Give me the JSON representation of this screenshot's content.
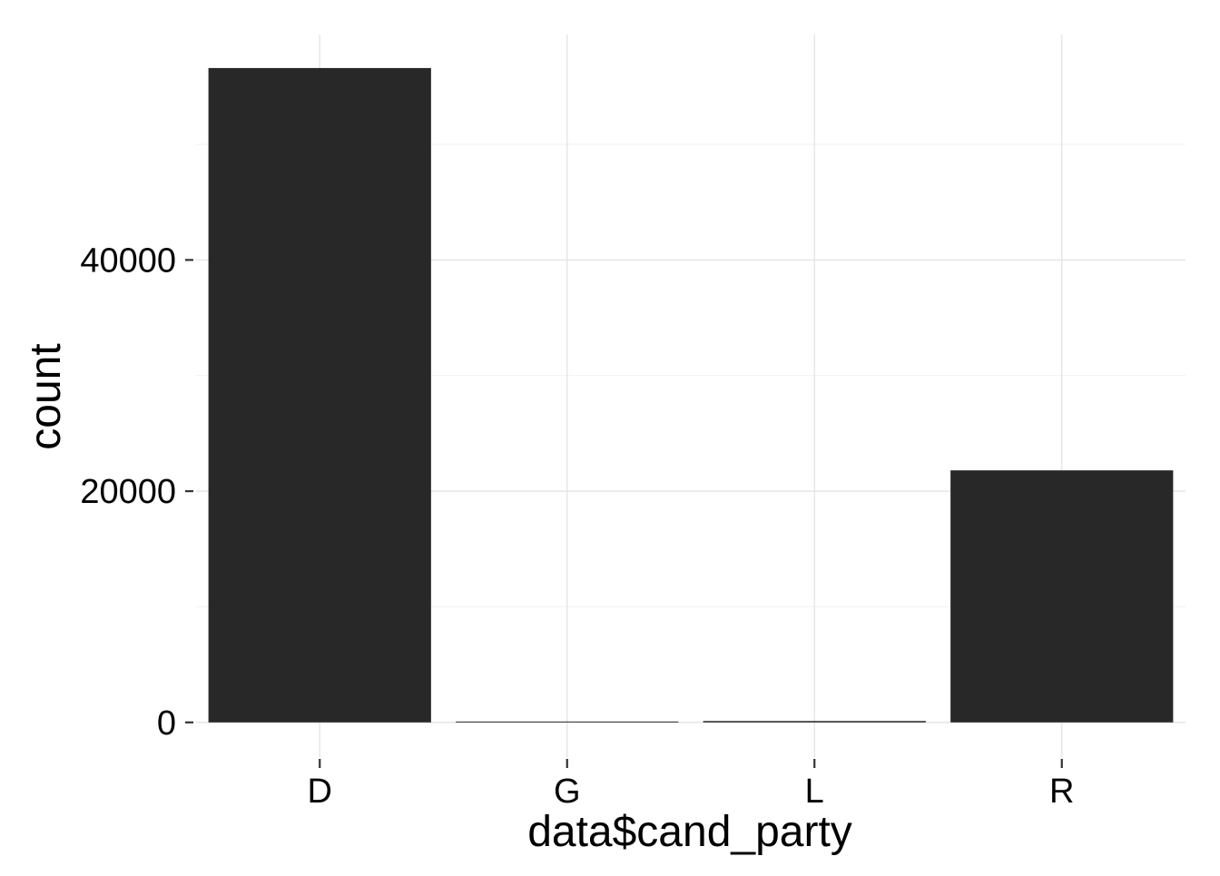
{
  "chart_data": {
    "type": "bar",
    "categories": [
      "D",
      "G",
      "L",
      "R"
    ],
    "values": [
      56600,
      50,
      120,
      21800
    ],
    "xlabel": "data$cand_party",
    "ylabel": "count",
    "ylim": [
      -3000,
      59500
    ],
    "yticks": [
      0,
      20000,
      40000
    ],
    "ytick_labels": [
      "0",
      "20000",
      "40000"
    ],
    "yminor": [
      10000,
      30000,
      50000
    ],
    "grid": true,
    "bar_color": "#282828",
    "grid_color": "#e3e3e3",
    "background": "#ffffff"
  }
}
